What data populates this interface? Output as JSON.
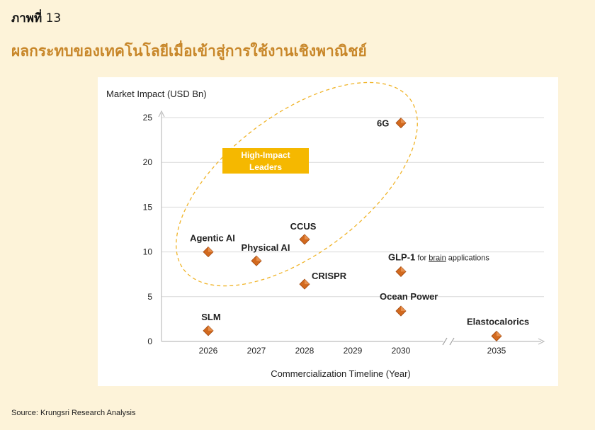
{
  "figure": {
    "number_label": "ภาพที่",
    "number": "13",
    "title": "ผลกระทบของเทคโนโลยีเมื่อเข้าสู่การใช้งานเชิงพาณิชย์",
    "source": "Source: Krungsri Research Analysis"
  },
  "chart_data": {
    "type": "scatter",
    "ylabel": "Market Impact (USD Bn)",
    "xlabel": "Commercialization Timeline (Year)",
    "ylim": [
      0,
      25
    ],
    "yticks": [
      0,
      5,
      10,
      15,
      20,
      25
    ],
    "xticks": [
      "2026",
      "2027",
      "2028",
      "2029",
      "2030",
      "2035"
    ],
    "x_axis_break": "between 2030 and 2035",
    "grid": "horizontal",
    "marker_color": "#d2691e",
    "highlight_color": "#f5b800",
    "callout": {
      "label_line1": "High-Impact",
      "label_line2": "Leaders"
    },
    "points": [
      {
        "name": "SLM",
        "x": 2026,
        "y": 1.2
      },
      {
        "name": "Agentic AI",
        "x": 2026,
        "y": 10.0
      },
      {
        "name": "Physical AI",
        "x": 2027,
        "y": 9.0
      },
      {
        "name": "CCUS",
        "x": 2028,
        "y": 11.4
      },
      {
        "name": "CRISPR",
        "x": 2028,
        "y": 6.4
      },
      {
        "name": "6G",
        "x": 2030,
        "y": 24.4
      },
      {
        "name": "GLP-1",
        "suffix_pre": "for ",
        "suffix_underlined": "brain",
        "suffix_post": " applications",
        "x": 2030,
        "y": 7.8
      },
      {
        "name": "Ocean Power",
        "x": 2030,
        "y": 3.4
      },
      {
        "name": "Elastocalorics",
        "x": 2035,
        "y": 0.6
      }
    ]
  }
}
